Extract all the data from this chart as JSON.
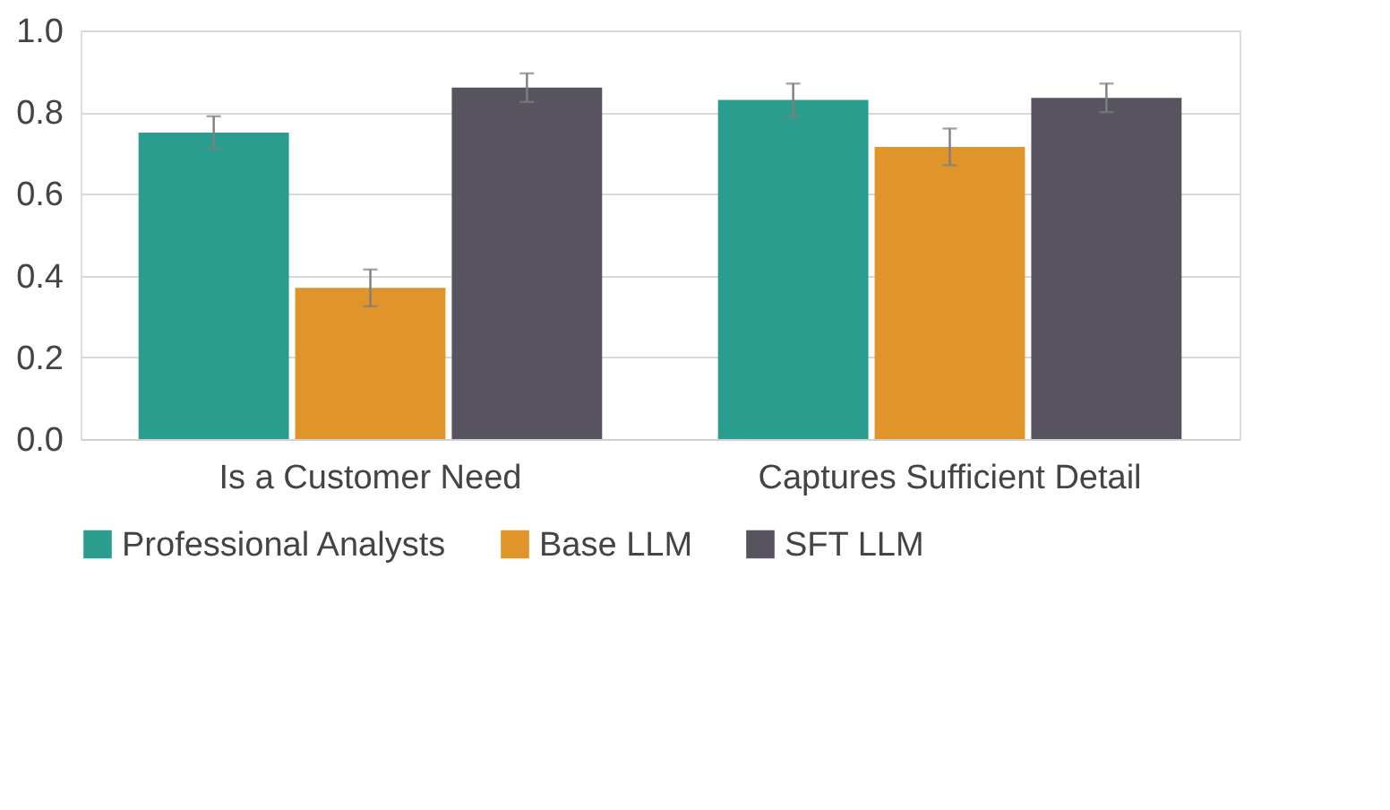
{
  "chart_data": {
    "type": "bar",
    "categories": [
      "Is a Customer Need",
      "Captures Sufficient Detail"
    ],
    "series": [
      {
        "name": "Professional Analysts",
        "color": "#2a9d8f",
        "values": [
          0.75,
          0.83
        ],
        "errors": [
          0.04,
          0.04
        ]
      },
      {
        "name": "Base LLM",
        "color": "#e0952a",
        "values": [
          0.37,
          0.715
        ],
        "errors": [
          0.045,
          0.045
        ]
      },
      {
        "name": "SFT LLM",
        "color": "#57535f",
        "values": [
          0.86,
          0.835
        ],
        "errors": [
          0.035,
          0.035
        ]
      }
    ],
    "ylim": [
      0,
      1.0
    ],
    "yticks": [
      {
        "value": 0,
        "label": "0.0"
      },
      {
        "value": 0.2,
        "label": "0.2"
      },
      {
        "value": 0.4,
        "label": "0.4"
      },
      {
        "value": 0.6,
        "label": "0.6"
      },
      {
        "value": 0.8,
        "label": "0.8"
      },
      {
        "value": 1.0,
        "label": "1.0"
      }
    ],
    "grid": "y",
    "legend": "bottom"
  }
}
